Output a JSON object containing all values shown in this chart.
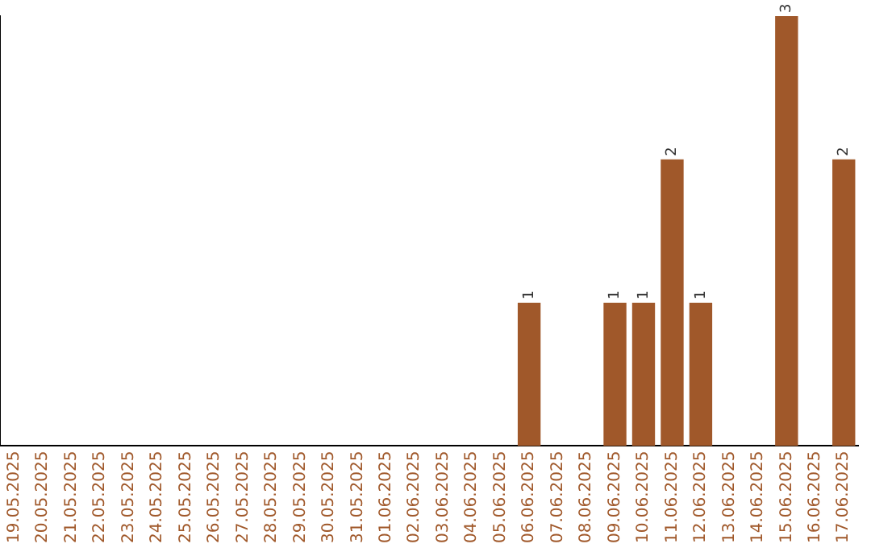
{
  "chart_data": {
    "type": "bar",
    "categories": [
      "19.05.2025",
      "20.05.2025",
      "21.05.2025",
      "22.05.2025",
      "23.05.2025",
      "24.05.2025",
      "25.05.2025",
      "26.05.2025",
      "27.05.2025",
      "28.05.2025",
      "29.05.2025",
      "30.05.2025",
      "31.05.2025",
      "01.06.2025",
      "02.06.2025",
      "03.06.2025",
      "04.06.2025",
      "05.06.2025",
      "06.06.2025",
      "07.06.2025",
      "08.06.2025",
      "09.06.2025",
      "10.06.2025",
      "11.06.2025",
      "12.06.2025",
      "13.06.2025",
      "14.06.2025",
      "15.06.2025",
      "16.06.2025",
      "17.06.2025"
    ],
    "values": [
      null,
      null,
      null,
      null,
      null,
      null,
      null,
      null,
      null,
      null,
      null,
      null,
      null,
      null,
      null,
      null,
      null,
      null,
      1,
      null,
      null,
      1,
      1,
      2,
      1,
      null,
      null,
      3,
      null,
      2
    ],
    "data_labels": true,
    "color": "#a0582a",
    "grid": false,
    "legend": false,
    "tick_labels": "x"
  }
}
